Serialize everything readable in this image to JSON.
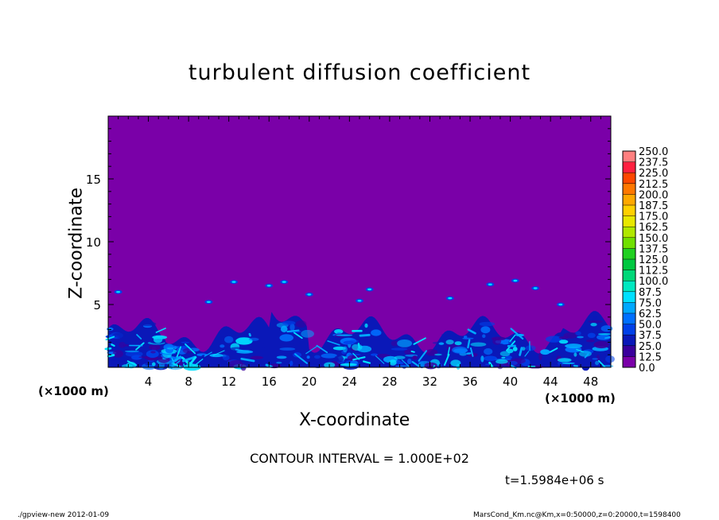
{
  "chart_data": {
    "type": "heatmap",
    "title": "turbulent diffusion coefficient",
    "xlabel": "X-coordinate",
    "ylabel": "Z-coordinate",
    "x_unit": "(×1000 m)",
    "xlim": [
      0,
      50
    ],
    "ylim": [
      0,
      20
    ],
    "x_ticks": [
      4,
      8,
      12,
      16,
      20,
      24,
      28,
      32,
      36,
      40,
      44,
      48
    ],
    "y_ticks": [
      5,
      10,
      15
    ],
    "background_value": 0.0,
    "mixed_layer_top_approx_km": 3.5,
    "colorbar": {
      "levels": [
        "0.0",
        "12.5",
        "25.0",
        "37.5",
        "50.0",
        "62.5",
        "75.0",
        "87.5",
        "100.0",
        "112.5",
        "125.0",
        "137.5",
        "150.0",
        "162.5",
        "175.0",
        "187.5",
        "200.0",
        "212.5",
        "225.0",
        "237.5",
        "250.0"
      ],
      "colors": [
        "#7a00a8",
        "#3a009c",
        "#0a18b8",
        "#0040e8",
        "#0070ff",
        "#00a8ff",
        "#00e0ff",
        "#00e8c0",
        "#00d878",
        "#00c840",
        "#20d020",
        "#70e000",
        "#b0e800",
        "#e8e800",
        "#ffd000",
        "#ffa800",
        "#ff7800",
        "#ff4800",
        "#ff2040",
        "#ff8080"
      ]
    },
    "contour_interval": "CONTOUR INTERVAL = 1.000E+02",
    "time": "t=1.5984e+06 s"
  },
  "footer": {
    "left": "./gpview-new  2012-01-09",
    "right": "MarsCond_Km.nc@Km,x=0:50000,z=0:20000,t=1598400"
  }
}
